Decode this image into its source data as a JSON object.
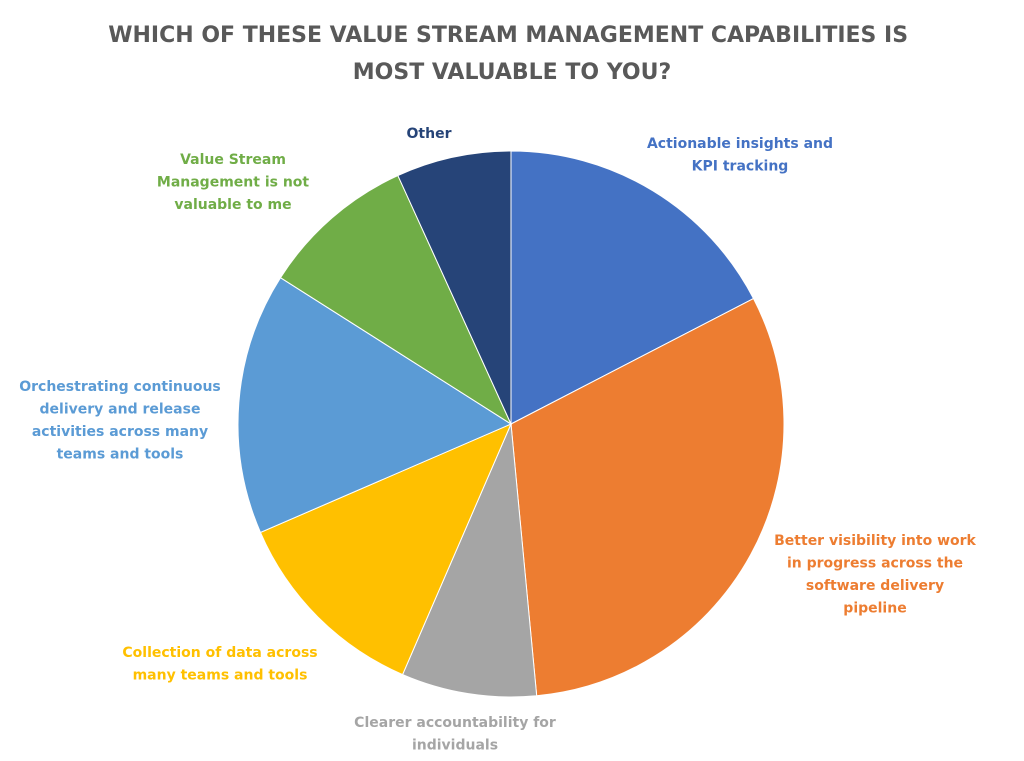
{
  "chart_data": {
    "type": "pie",
    "title": "WHICH OF THESE VALUE STREAM MANAGEMENT CAPABILITIES IS MOST VALUABLE TO YOU?",
    "title_lines": [
      "WHICH OF THESE VALUE STREAM MANAGEMENT CAPABILITIES IS",
      "MOST VALUABLE TO YOU?"
    ],
    "start_angle_deg": 0,
    "direction": "clockwise",
    "slices": [
      {
        "label": "Actionable insights and KPI tracking",
        "label_lines": [
          "Actionable insights and",
          "KPI tracking"
        ],
        "value": 17.4,
        "color": "#4472C4"
      },
      {
        "label": "Better visibility into work in progress across the software delivery pipeline",
        "label_lines": [
          "Better visibility into work",
          "in progress across the",
          "software delivery",
          "pipeline"
        ],
        "value": 31.1,
        "color": "#ED7D31"
      },
      {
        "label": "Clearer accountability for individuals",
        "label_lines": [
          "Clearer accountability for",
          "individuals"
        ],
        "value": 8.0,
        "color": "#A5A5A5"
      },
      {
        "label": "Collection of data across many teams and tools",
        "label_lines": [
          "Collection of data across",
          "many teams and tools"
        ],
        "value": 12.0,
        "color": "#FFC000"
      },
      {
        "label": "Orchestrating continuous delivery and release activities across many teams and tools",
        "label_lines": [
          "Orchestrating continuous",
          "delivery and release",
          "activities across many",
          "teams and tools"
        ],
        "value": 15.5,
        "color": "#5B9BD5"
      },
      {
        "label": "Value Stream Management is not valuable to me",
        "label_lines": [
          "Value Stream",
          "Management is not",
          "valuable to me"
        ],
        "value": 9.2,
        "color": "#70AD47"
      },
      {
        "label": "Other",
        "label_lines": [
          "Other"
        ],
        "value": 6.8,
        "color": "#264478"
      }
    ]
  }
}
